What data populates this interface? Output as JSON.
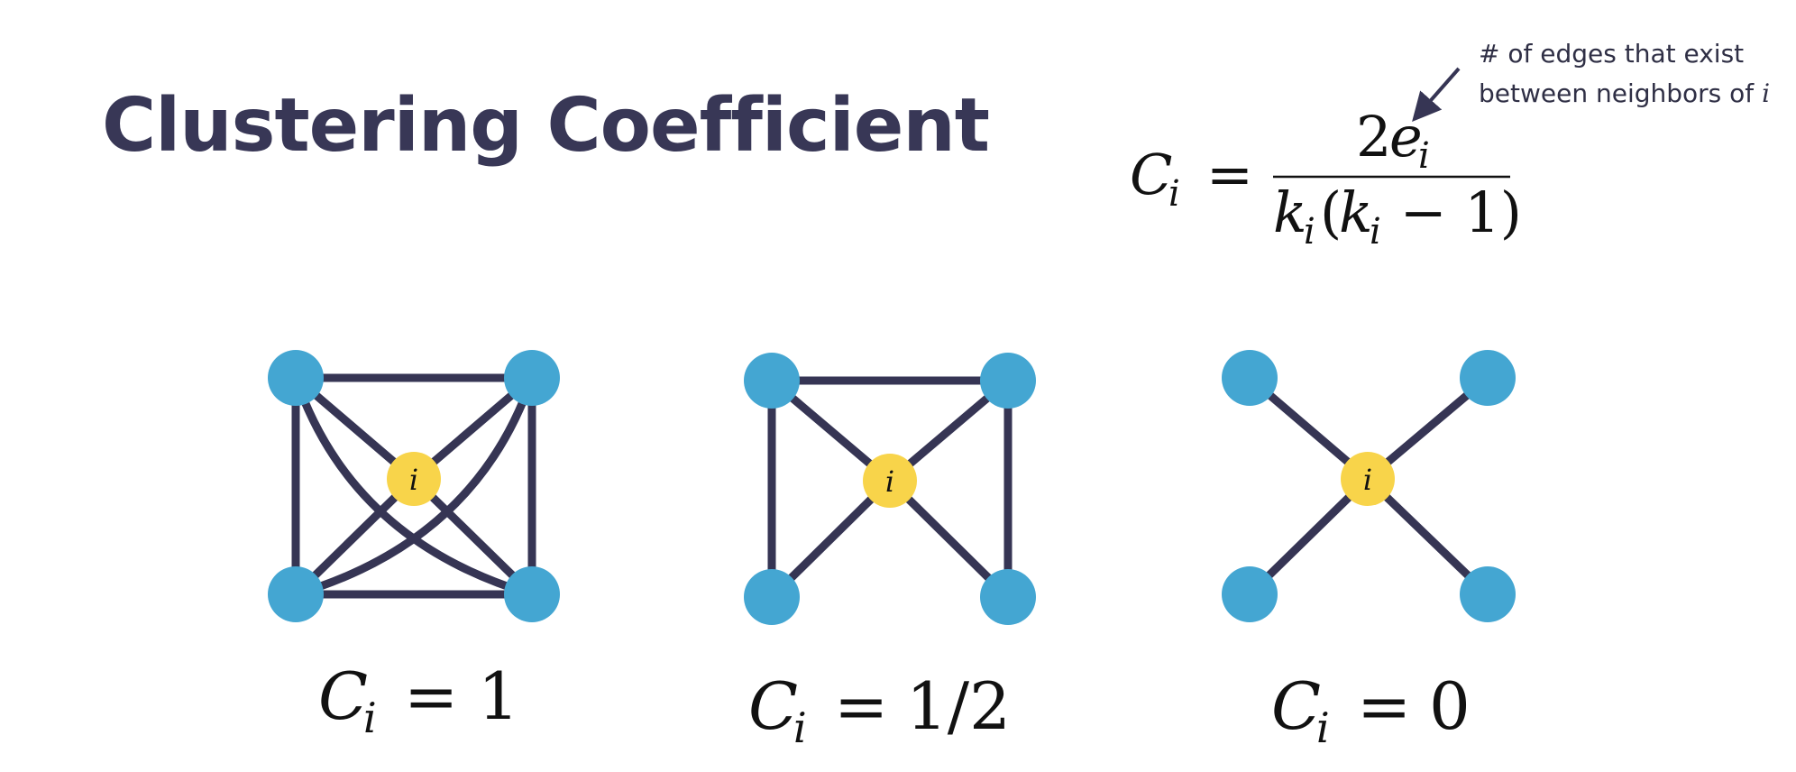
{
  "title": "Clustering Coefficient",
  "annotation": {
    "line1": "# of edges that exist",
    "line2_prefix": "between neighbors of",
    "line2_var": "i"
  },
  "formula": {
    "lhs_symbol": "C",
    "subscript": "i",
    "equals": "=",
    "numerator_coef": "2",
    "numerator_var": "e",
    "denominator_var": "k",
    "denominator_open": "(",
    "denominator_minus_one": " − 1)"
  },
  "center_label": "i",
  "examples": [
    {
      "value": "1"
    },
    {
      "value": "1/2"
    },
    {
      "value": "0"
    }
  ],
  "colors": {
    "title": "#383756",
    "edge": "#363554",
    "neighbor_node": "#44a6d2",
    "center_node": "#f8d44a",
    "math": "#111111"
  }
}
